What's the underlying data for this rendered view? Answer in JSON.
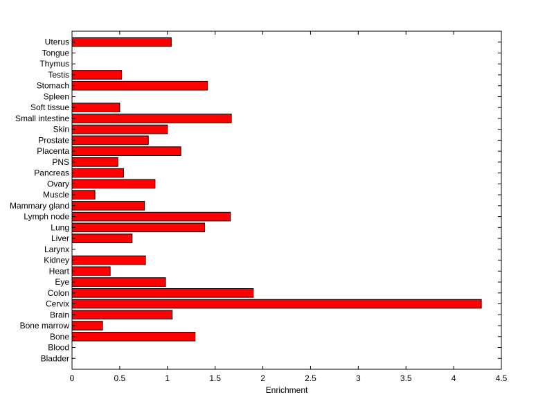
{
  "chart_data": {
    "type": "bar",
    "orientation": "horizontal",
    "title": "",
    "xlabel": "Enrichment",
    "ylabel": "",
    "xlim": [
      0,
      4.5
    ],
    "xticks": [
      "0",
      "0.5",
      "1",
      "1.5",
      "2",
      "2.5",
      "3",
      "3.5",
      "4",
      "4.5"
    ],
    "grid": false,
    "bar_color": "#ff0000",
    "edge_color": "#000000",
    "categories": [
      "Bladder",
      "Blood",
      "Bone",
      "Bone marrow",
      "Brain",
      "Cervix",
      "Colon",
      "Eye",
      "Heart",
      "Kidney",
      "Larynx",
      "Liver",
      "Lung",
      "Lymph node",
      "Mammary gland",
      "Muscle",
      "Ovary",
      "Pancreas",
      "PNS",
      "Placenta",
      "Prostate",
      "Skin",
      "Small intestine",
      "Soft tissue",
      "Spleen",
      "Stomach",
      "Testis",
      "Thymus",
      "Tongue",
      "Uterus"
    ],
    "values": [
      0,
      0,
      1.29,
      0.32,
      1.05,
      4.29,
      1.9,
      0.98,
      0.4,
      0.77,
      0,
      0.63,
      1.39,
      1.66,
      0.76,
      0.24,
      0.87,
      0.54,
      0.48,
      1.14,
      0.8,
      1.0,
      1.67,
      0.5,
      0,
      1.42,
      0.52,
      0,
      0,
      1.04
    ]
  }
}
